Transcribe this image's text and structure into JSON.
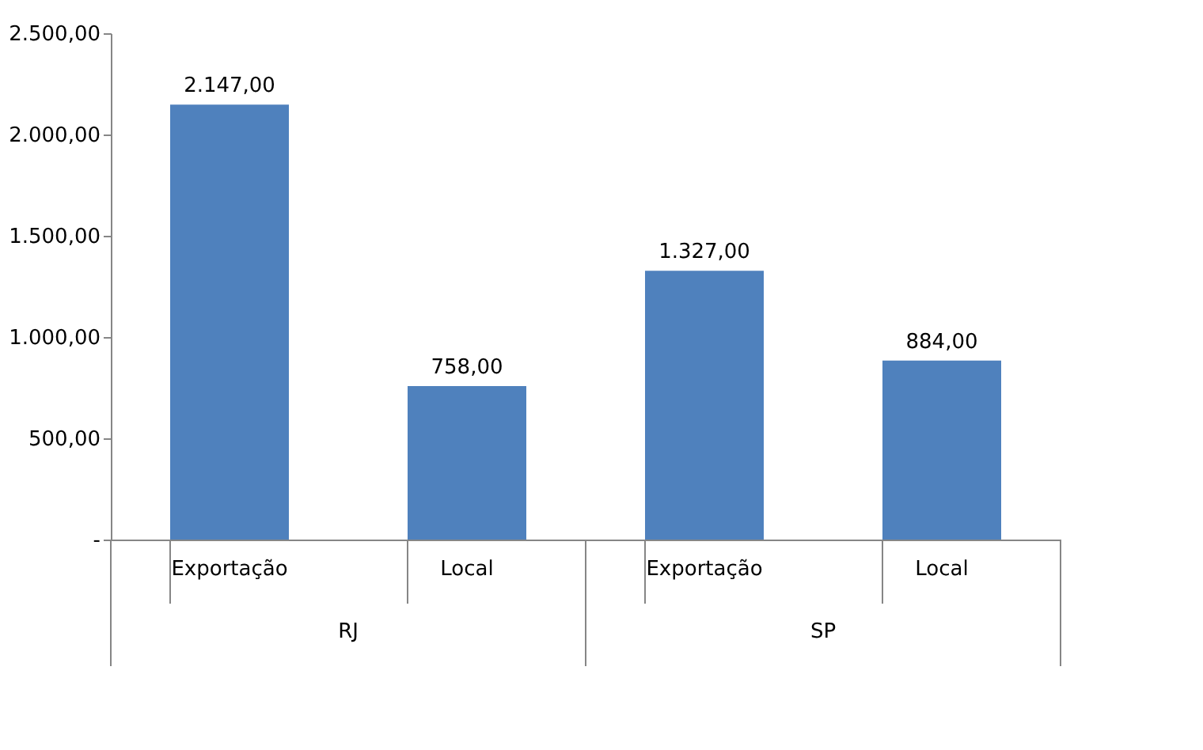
{
  "chart_data": {
    "type": "bar",
    "categories": [
      "Exportação",
      "Local",
      "Exportação",
      "Local"
    ],
    "values": [
      2147,
      758,
      1327,
      884
    ],
    "color": "#4f81bd",
    "value_labels": [
      "2.147,00",
      "758,00",
      "1.327,00",
      "884,00"
    ],
    "ylim": [
      0,
      2500
    ],
    "yticks": [
      {
        "value": 0,
        "label": "-"
      },
      {
        "value": 500,
        "label": "500,00"
      },
      {
        "value": 1000,
        "label": "1.000,00"
      },
      {
        "value": 1500,
        "label": "1.500,00"
      },
      {
        "value": 2000,
        "label": "2.000,00"
      },
      {
        "value": 2500,
        "label": "2.500,00"
      }
    ],
    "annotations": [
      "RJ",
      "SP"
    ],
    "grid": false,
    "legend": false
  }
}
